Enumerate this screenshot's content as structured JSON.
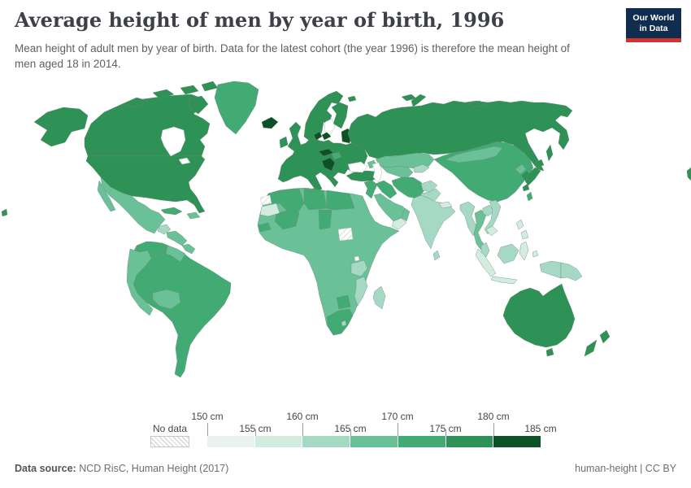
{
  "header": {
    "title": "Average height of men by year of birth, 1996",
    "subtitle": "Mean height of adult men by year of birth. Data for the latest cohort (the year 1996) is therefore the mean height of men aged 18 in 2014.",
    "logo_line1": "Our World",
    "logo_line2": "in Data"
  },
  "legend": {
    "no_data_label": "No data",
    "tick_labels_top": [
      "150 cm",
      "160 cm",
      "170 cm",
      "180 cm"
    ],
    "tick_labels_bottom": [
      "155 cm",
      "165 cm",
      "175 cm",
      "185 cm"
    ]
  },
  "footer": {
    "source_label": "Data source:",
    "source_value": " NCD RisC, Human Height (2017)",
    "right_text": "human-height | CC BY"
  },
  "colors": {
    "border": "#72877c",
    "no_data_border": "#c2c2c2",
    "sea_stroke": "#a9bcb2",
    "logo_bg": "#102d50",
    "logo_stripe": "#cf352e"
  },
  "chart_data": {
    "type": "heatmap",
    "subtype": "choropleth_world_map",
    "title": "Average height of men by year of birth, 1996",
    "metric": "Mean height of adult men (cm), 1996 birth cohort",
    "unit": "cm",
    "legend_position": "bottom",
    "scale_domain": [
      150,
      185
    ],
    "bins": [
      {
        "range": "150-155",
        "label": "150 cm – 155 cm",
        "color": "#e8f3f0"
      },
      {
        "range": "155-160",
        "label": "155 cm – 160 cm",
        "color": "#d2ecdf"
      },
      {
        "range": "160-165",
        "label": "160 cm – 165 cm",
        "color": "#a5d9c4"
      },
      {
        "range": "165-170",
        "label": "165 cm – 170 cm",
        "color": "#6ac197"
      },
      {
        "range": "170-175",
        "label": "170 cm – 175 cm",
        "color": "#42ab73"
      },
      {
        "range": "175-180",
        "label": "175 cm – 180 cm",
        "color": "#2e9156"
      },
      {
        "range": "180-185",
        "label": "180 cm – 185 cm",
        "color": "#0d5226"
      }
    ],
    "no_data_regions": [
      "Western Sahara",
      "South Sudan"
    ],
    "regions": {
      "United States": "175-180",
      "Canada": "175-180",
      "Greenland": "170-175",
      "Mexico": "165-170",
      "Guatemala": "160-165",
      "Nicaragua & Honduras": "165-170",
      "Panama & Costa Rica": "165-170",
      "Cuba": "170-175",
      "Haiti & Dominican Republic": "165-170",
      "Venezuela": "170-175",
      "Guyana & Suriname": "165-170",
      "Brazil & Southern Cone": "170-175",
      "Peru & Andean states": "165-170",
      "Bolivia": "165-170",
      "Iceland": "180-185",
      "United Kingdom": "175-180",
      "Ireland": "175-180",
      "Norway & Sweden": "175-180",
      "Finland": "175-180",
      "Denmark": "180-185",
      "Baltic states": "180-185",
      "Western & Central Europe": "175-180",
      "Netherlands": "180-185",
      "Czechia & Slovakia": "180-185",
      "Western Balkans": "180-185",
      "Hungary": "170-175",
      "Russia": "175-180",
      "Kazakhstan": "165-170",
      "Uzbekistan & Turkmenistan": "165-170",
      "Kyrgyzstan & Tajikistan": "160-165",
      "Caucasus": "165-170",
      "Turkey": "175-180",
      "Syria & Levant": "170-175",
      "Iraq": "170-175",
      "Iran": "170-175",
      "Afghanistan": "160-165",
      "Pakistan": "160-165",
      "Saudi Arabia": "165-170",
      "Yemen": "155-160",
      "Oman": "165-170",
      "India": "160-165",
      "Sri Lanka": "160-165",
      "Nepal": "155-160",
      "Bangladesh": "155-160",
      "China": "170-175",
      "Mongolia": "165-170",
      "Taiwan": "170-175",
      "North Korea": "165-170",
      "South Korea": "175-180",
      "Japan": "175-180",
      "Myanmar": "160-165",
      "Thailand": "165-170",
      "Laos": "160-165",
      "Vietnam": "160-165",
      "Cambodia": "155-160",
      "Malaysia": "160-165",
      "Indonesia": "155-160",
      "Indonesia (Papua)": "160-165",
      "Philippines": "155-160",
      "Papua New Guinea": "160-165",
      "Australia": "175-180",
      "New Zealand": "175-180",
      "Sub-Saharan Africa": "165-170",
      "Morocco": "170-175",
      "Algeria": "170-175",
      "Libya": "170-175",
      "Egypt": "170-175",
      "Mali": "170-175",
      "Senegal": "170-175",
      "Chad": "170-175",
      "Mauritania": "155-160",
      "Tanzania": "160-165",
      "Mozambique & Malawi": "160-165",
      "Madagascar": "160-165",
      "Botswana": "170-175",
      "South Africa": "170-175",
      "Lesotho": "160-165",
      "Western Sahara": "No data",
      "South Sudan": "No data"
    }
  }
}
